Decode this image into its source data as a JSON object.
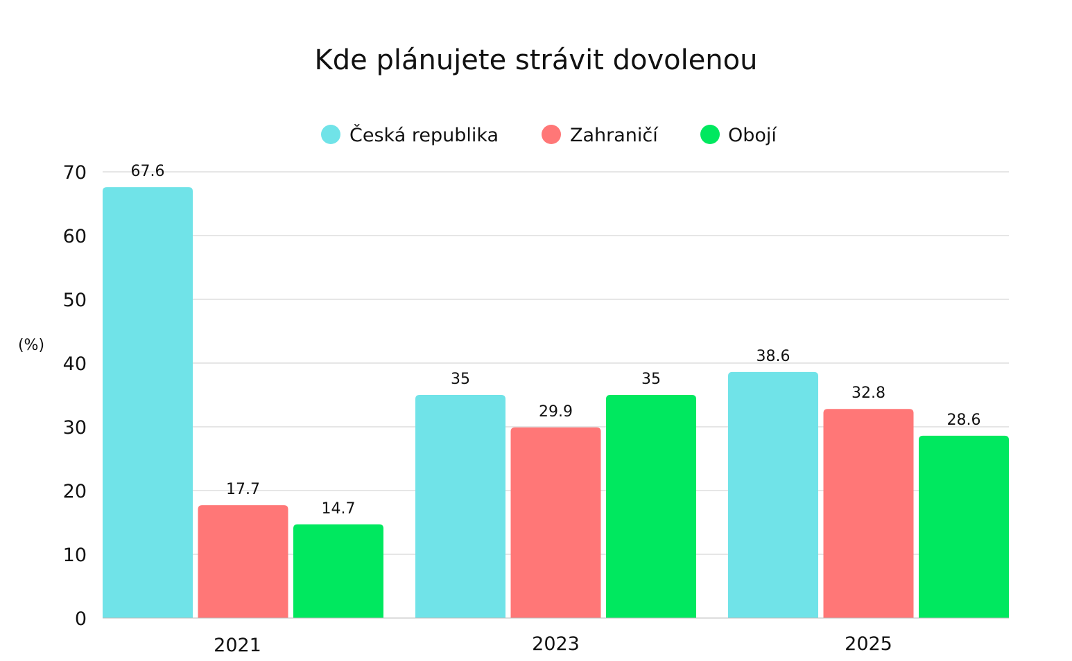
{
  "chart_data": {
    "type": "bar",
    "title": "Kde plánujete strávit dovolenou",
    "ylabel": "(%)",
    "xlabel": "",
    "categories": [
      "2021",
      "2023",
      "2025"
    ],
    "series": [
      {
        "name": "Česká republika",
        "color": "#70E3E8",
        "values": [
          67.6,
          35,
          38.6
        ],
        "labels": [
          "67.6",
          "35",
          "38.6"
        ]
      },
      {
        "name": "Zahraničí",
        "color": "#FF7777",
        "values": [
          17.7,
          29.9,
          32.8
        ],
        "labels": [
          "17.7",
          "29.9",
          "32.8"
        ]
      },
      {
        "name": "Obojí",
        "color": "#00E85F",
        "values": [
          14.7,
          35,
          28.6
        ],
        "labels": [
          "14.7",
          "35",
          "28.6"
        ]
      }
    ],
    "ylim": [
      0,
      70
    ],
    "yticks": [
      "0",
      "10",
      "20",
      "30",
      "40",
      "50",
      "60",
      "70"
    ],
    "grid": true,
    "legend_position": "top-center"
  }
}
